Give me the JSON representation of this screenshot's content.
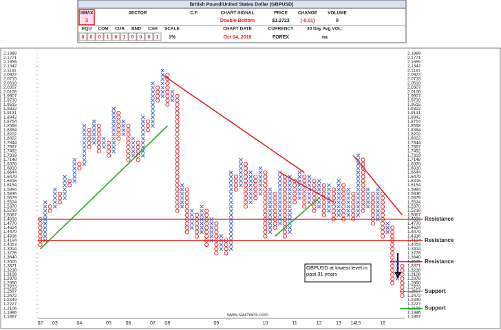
{
  "header": {
    "title": "British Pound/United States Dollar (GBPUSD)",
    "smax_label": "SMAX",
    "smax_value": "3",
    "sector_label": "SECTOR",
    "cf_label": "C.F.",
    "signal_label": "CHART SIGNAL",
    "signal_value": "Double Bottom",
    "price_label": "PRICE",
    "price_value": "$1.2723",
    "change_label": "CHANGE",
    "change_value": "(-0.01)",
    "volume_label": "VOLUME",
    "volume_value": "0",
    "alloc_labels": [
      "EQU",
      "COM",
      "CUR",
      "BND",
      "CSH"
    ],
    "alloc_values": [
      "0",
      "0",
      "0",
      "1",
      "0",
      "1",
      "0",
      "0",
      "0",
      "1"
    ],
    "scale_label": "SCALE",
    "scale_value": "1%",
    "date_label": "CHART DATE",
    "date_value": "Oct 04, 2016",
    "currency_label": "CURRENCY",
    "currency_value": "FOREX",
    "avgvol_label": "30 Day Avg VOL:",
    "avgvol_value": "na"
  },
  "chart_data": {
    "type": "pnf",
    "log_scale": true,
    "ylim": [
      1.1867,
      2.1989
    ],
    "yticks": [
      2.1989,
      2.1771,
      2.1555,
      2.1342,
      2.1131,
      2.0922,
      2.0715,
      {
        "value": 2.051,
        "label": "2.0510"
      },
      2.0307,
      2.0106,
      1.9907,
      {
        "value": 1.971,
        "label": "1.9710"
      },
      1.9515,
      1.9322,
      1.9131,
      1.8942,
      1.8754,
      1.8568,
      1.8384,
      1.8202,
      1.8022,
      1.7844,
      1.7667,
      1.7492,
      1.7319,
      1.7148,
      1.6978,
      {
        "value": 1.681,
        "label": "1.6810"
      },
      1.6644,
      1.6479,
      1.6316,
      1.6154,
      1.5994,
      1.5836,
      1.5679,
      1.5524,
      {
        "value": 1.537,
        "label": "1.5370"
      },
      1.5218,
      1.5067,
      1.4918,
      {
        "value": 1.477,
        "label": "1.4770"
      },
      1.4624,
      1.4479,
      1.4336,
      1.4194,
      1.4053,
      1.3914,
      1.3776,
      {
        "value": 1.364,
        "label": "1.3640"
      },
      1.3505,
      1.3371,
      1.3238,
      1.3108,
      1.2978,
      {
        "value": 1.285,
        "label": "1.2850"
      },
      1.2723,
      1.2597,
      1.2472,
      1.2349,
      1.2227,
      1.2106,
      1.1986,
      1.1867
    ],
    "x_color": "#3a5fd0",
    "o_color": "#e02a2a",
    "columns": [
      {
        "box": "O",
        "low": 1.4053,
        "high": 1.4918
      },
      {
        "box": "X",
        "low": 1.4194,
        "high": 1.5524
      },
      {
        "box": "O",
        "low": 1.5218,
        "high": 1.537
      },
      {
        "box": "X",
        "low": 1.537,
        "high": 1.5994
      },
      {
        "box": "O",
        "low": 1.5524,
        "high": 1.5836
      },
      {
        "box": "X",
        "low": 1.5679,
        "high": 1.6479
      },
      {
        "box": "O",
        "low": 1.6154,
        "high": 1.6316
      },
      {
        "box": "X",
        "low": 1.6316,
        "high": 1.7148
      },
      {
        "box": "O",
        "low": 1.681,
        "high": 1.6978
      },
      {
        "box": "X",
        "low": 1.6978,
        "high": 1.8568
      },
      {
        "box": "O",
        "low": 1.7667,
        "high": 1.8384
      },
      {
        "box": "X",
        "low": 1.7844,
        "high": 1.8754
      },
      {
        "box": "O",
        "low": 1.7492,
        "high": 1.8568
      },
      {
        "box": "X",
        "low": 1.7667,
        "high": 1.8022
      },
      {
        "box": "O",
        "low": 1.7319,
        "high": 1.7844
      },
      {
        "box": "X",
        "low": 1.7492,
        "high": 1.9322
      },
      {
        "box": "O",
        "low": 1.8022,
        "high": 1.9131
      },
      {
        "box": "X",
        "low": 1.8202,
        "high": 1.8754
      },
      {
        "box": "O",
        "low": 1.7148,
        "high": 1.8568
      },
      {
        "box": "X",
        "low": 1.7319,
        "high": 1.8022
      },
      {
        "box": "O",
        "low": 1.7148,
        "high": 1.7844
      },
      {
        "box": "X",
        "low": 1.7319,
        "high": 1.8942
      },
      {
        "box": "O",
        "low": 1.8384,
        "high": 1.8754
      },
      {
        "box": "X",
        "low": 1.8568,
        "high": 2.051
      },
      {
        "box": "O",
        "low": 1.971,
        "high": 2.0307
      },
      {
        "box": "X",
        "low": 1.9907,
        "high": 2.1131
      },
      {
        "box": "O",
        "low": 1.9515,
        "high": 2.0922
      },
      {
        "box": "X",
        "low": 1.971,
        "high": 2.0106
      },
      {
        "box": "O",
        "low": 1.5218,
        "high": 1.9907
      },
      {
        "box": "X",
        "low": 1.537,
        "high": 1.6154
      },
      {
        "box": "O",
        "low": 1.4479,
        "high": 1.5994
      },
      {
        "box": "X",
        "low": 1.4624,
        "high": 1.5218
      },
      {
        "box": "O",
        "low": 1.4336,
        "high": 1.5067
      },
      {
        "box": "X",
        "low": 1.4479,
        "high": 1.537
      },
      {
        "box": "O",
        "low": 1.4053,
        "high": 1.5218
      },
      {
        "box": "X",
        "low": 1.4194,
        "high": 1.4918
      },
      {
        "box": "O",
        "low": 1.3776,
        "high": 1.477
      },
      {
        "box": "X",
        "low": 1.3914,
        "high": 1.4336
      },
      {
        "box": "O",
        "low": 1.3776,
        "high": 1.4194
      },
      {
        "box": "X",
        "low": 1.3914,
        "high": 1.6644
      },
      {
        "box": "O",
        "low": 1.5994,
        "high": 1.6479
      },
      {
        "box": "X",
        "low": 1.6154,
        "high": 1.7148
      },
      {
        "box": "O",
        "low": 1.537,
        "high": 1.6978
      },
      {
        "box": "X",
        "low": 1.5524,
        "high": 1.6644
      },
      {
        "box": "O",
        "low": 1.5679,
        "high": 1.6479
      },
      {
        "box": "X",
        "low": 1.5836,
        "high": 1.681
      },
      {
        "box": "O",
        "low": 1.4336,
        "high": 1.6644
      },
      {
        "box": "X",
        "low": 1.4479,
        "high": 1.5994
      },
      {
        "box": "O",
        "low": 1.4624,
        "high": 1.5836
      },
      {
        "box": "X",
        "low": 1.477,
        "high": 1.6644
      },
      {
        "box": "O",
        "low": 1.4336,
        "high": 1.6479
      },
      {
        "box": "X",
        "low": 1.4479,
        "high": 1.6479
      },
      {
        "box": "O",
        "low": 1.5524,
        "high": 1.6316
      },
      {
        "box": "X",
        "low": 1.5679,
        "high": 1.6644
      },
      {
        "box": "O",
        "low": 1.537,
        "high": 1.6479
      },
      {
        "box": "X",
        "low": 1.5524,
        "high": 1.6479
      },
      {
        "box": "O",
        "low": 1.5218,
        "high": 1.6316
      },
      {
        "box": "X",
        "low": 1.537,
        "high": 1.6316
      },
      {
        "box": "O",
        "low": 1.5067,
        "high": 1.6154
      },
      {
        "box": "X",
        "low": 1.5218,
        "high": 1.6154
      },
      {
        "box": "O",
        "low": 1.4918,
        "high": 1.5994
      },
      {
        "box": "X",
        "low": 1.5067,
        "high": 1.6316
      },
      {
        "box": "O",
        "low": 1.4918,
        "high": 1.6154
      },
      {
        "box": "X",
        "low": 1.5067,
        "high": 1.5994
      },
      {
        "box": "O",
        "low": 1.4918,
        "high": 1.5836
      },
      {
        "box": "X",
        "low": 1.5067,
        "high": 1.7319
      },
      {
        "box": "O",
        "low": 1.5218,
        "high": 1.7148
      },
      {
        "box": "X",
        "low": 1.537,
        "high": 1.5994
      },
      {
        "box": "O",
        "low": 1.477,
        "high": 1.5836
      },
      {
        "box": "X",
        "low": 1.4918,
        "high": 1.5994
      },
      {
        "box": "O",
        "low": 1.4336,
        "high": 1.5836
      },
      {
        "box": "X",
        "low": 1.4479,
        "high": 1.477
      },
      {
        "box": "O",
        "low": 1.285,
        "high": 1.4624
      },
      {
        "box": "X",
        "low": 1.2978,
        "high": 1.3505
      },
      {
        "box": "O",
        "low": 1.2472,
        "high": 1.3371
      }
    ],
    "year_labels": [
      "02",
      "03",
      "04",
      "05",
      "06",
      "07",
      "08",
      "09",
      "10",
      "11",
      "12",
      "13",
      "14",
      "15",
      "16"
    ],
    "year_columns": [
      0,
      3,
      8,
      14,
      18,
      23,
      26,
      36,
      46,
      52,
      57,
      61,
      64,
      65,
      70
    ],
    "trendlines": [
      {
        "color": "#1faa1f",
        "x": [
          0,
          26
        ],
        "y": [
          1.3914,
          1.8568
        ]
      },
      {
        "color": "#e02020",
        "x": [
          25,
          54
        ],
        "y": [
          2.0922,
          1.6644
        ]
      },
      {
        "color": "#e02020",
        "x": [
          49,
          60
        ],
        "y": [
          1.6644,
          1.5524
        ]
      },
      {
        "color": "#1faa1f",
        "x": [
          48,
          57
        ],
        "y": [
          1.4336,
          1.5679
        ]
      },
      {
        "color": "#e02020",
        "x": [
          64,
          74
        ],
        "y": [
          1.7319,
          1.5067
        ]
      }
    ],
    "levels": [
      {
        "value": 1.4918,
        "label": "Resistance",
        "color": "#e02020",
        "from": 0
      },
      {
        "value": 1.4194,
        "label": "Resistance",
        "color": "#e02020",
        "from": 0
      },
      {
        "value": 1.3505,
        "label": "Resistance",
        "color": "#e02020",
        "from": 72
      },
      {
        "value": 1.2597,
        "label": "Support",
        "color": "#1faa1f",
        "from": 74
      },
      {
        "value": 1.2106,
        "label": "Support",
        "color": "#1faa1f",
        "from": 74
      }
    ],
    "annotation": "GBPUSD at lowest level in past 31 years",
    "watermark": "www.siacharts.com"
  }
}
